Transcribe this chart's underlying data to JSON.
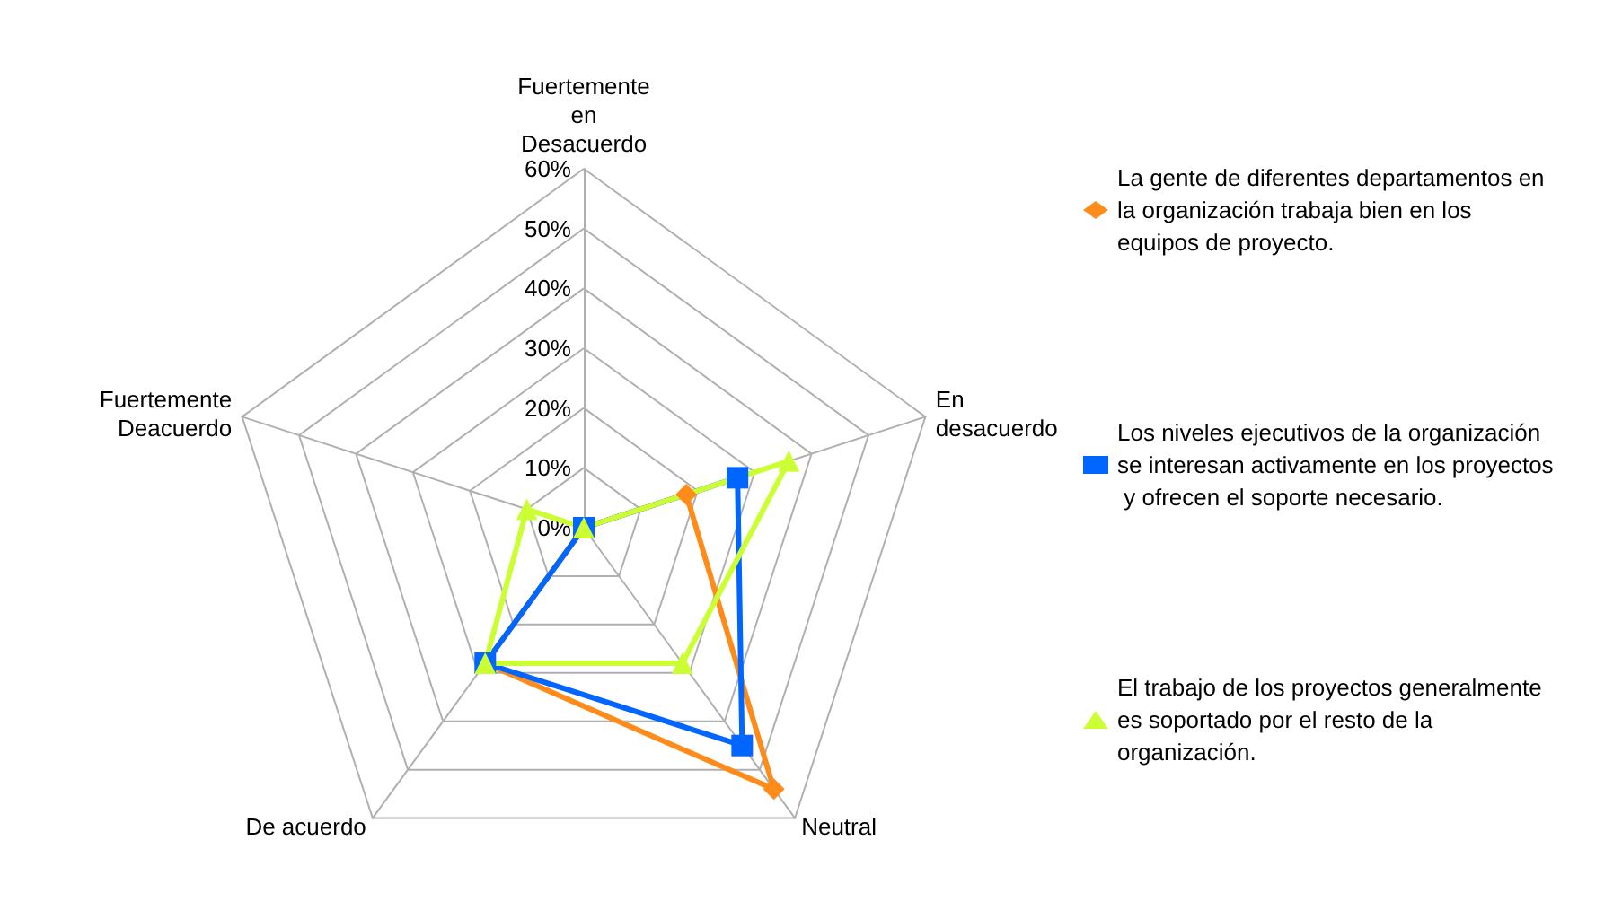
{
  "chart_data": {
    "type": "radar",
    "categories": [
      "Fuertemente en Desacuerdo",
      "En desacuerdo",
      "Neutral",
      "De acuerdo",
      "Fuertemente Deacuerdo"
    ],
    "series": [
      {
        "name": "La gente de diferentes departamentos en la organización trabaja bien en los equipos de proyecto.",
        "color": "#ff8c1a",
        "marker": "diamond",
        "values": [
          0,
          18,
          54,
          28,
          0
        ]
      },
      {
        "name": "Los niveles ejecutivos de la organización se interesan activamente en los proyectos y ofrecen el soporte necesario.",
        "color": "#0066ff",
        "marker": "square",
        "values": [
          0,
          27,
          45,
          28,
          0
        ]
      },
      {
        "name": "El trabajo de los proyectos generalmente es soportado por el resto de la organización.",
        "color": "#ccff33",
        "marker": "triangle",
        "values": [
          0,
          36,
          28,
          28,
          10
        ]
      }
    ],
    "ylim": [
      0,
      60
    ],
    "yticks": [
      {
        "value": 0,
        "label": "0%"
      },
      {
        "value": 10,
        "label": "10%"
      },
      {
        "value": 20,
        "label": "20%"
      },
      {
        "value": 30,
        "label": "30%"
      },
      {
        "value": 40,
        "label": "40%"
      },
      {
        "value": 50,
        "label": "50%"
      },
      {
        "value": 60,
        "label": "60%"
      }
    ],
    "grid": true,
    "legend": "right"
  }
}
